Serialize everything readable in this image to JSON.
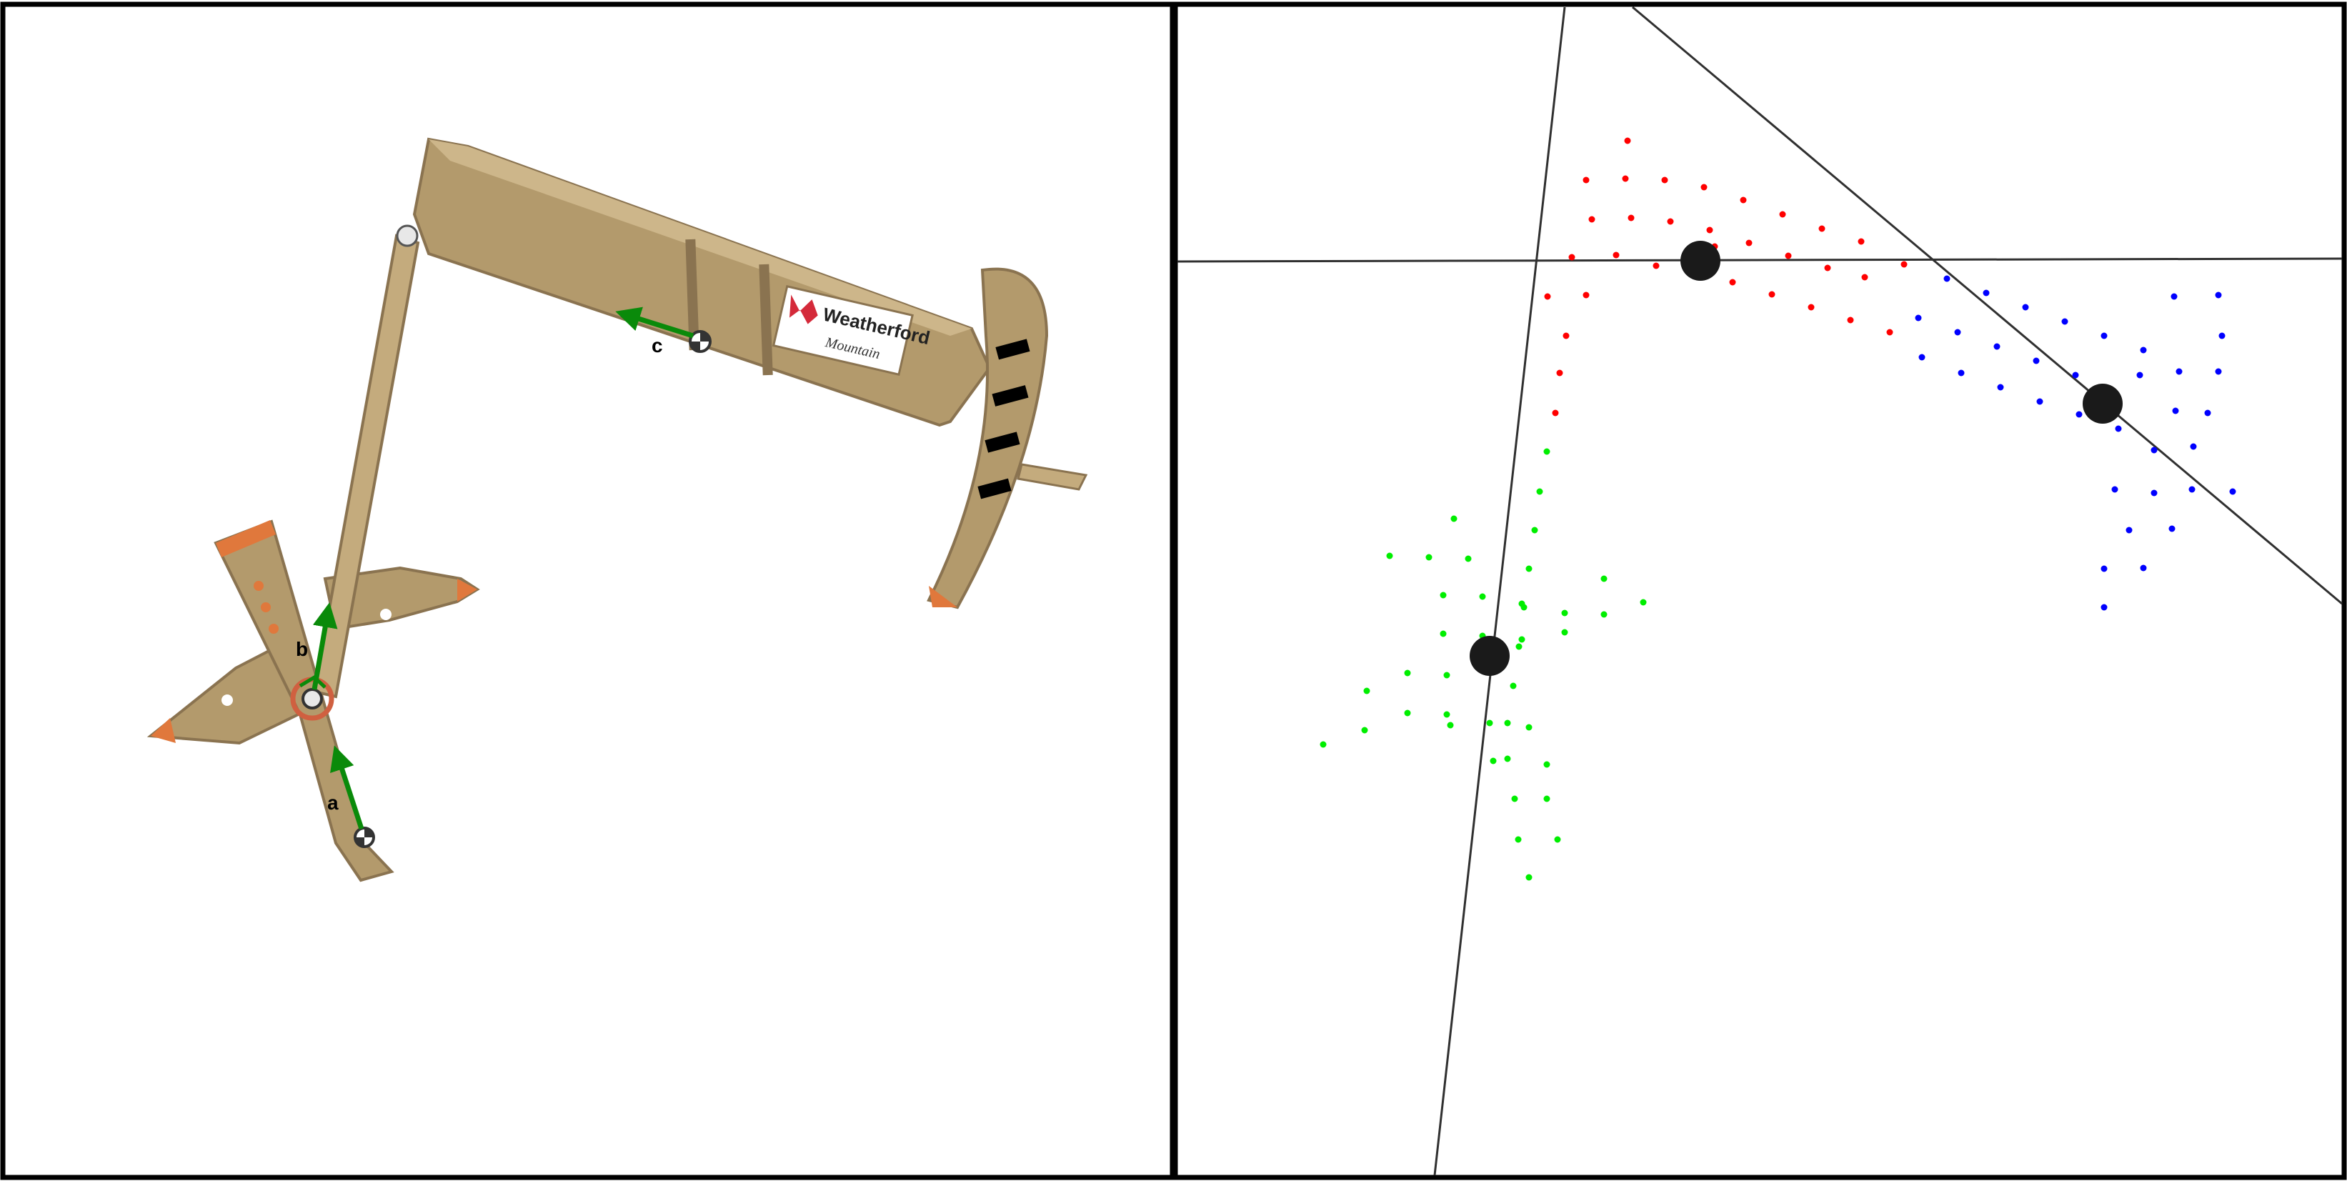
{
  "colors": {
    "frame": "#000000",
    "background": "#ffffff",
    "beam": "#b39a6c",
    "beam_dark": "#8a7350",
    "beam_light": "#cdb68a",
    "accent_orange": "#e0783c",
    "arrow_green": "#0a8a0a",
    "red_points": "#ff0000",
    "blue_points": "#0000ff",
    "green_points": "#00ee00",
    "marker": "#1a1a1a",
    "line": "#303030",
    "logo_red": "#d42a3a"
  },
  "left_panel": {
    "joint_labels": {
      "a": "a",
      "b": "b",
      "c": "c"
    },
    "sign": {
      "brand": "Weatherford",
      "signature": "Mountain"
    }
  },
  "right_panel": {
    "clusters": [
      {
        "name": "red",
        "color": "#ff0000"
      },
      {
        "name": "blue",
        "color": "#0000ff"
      },
      {
        "name": "green",
        "color": "#00ee00"
      }
    ]
  }
}
